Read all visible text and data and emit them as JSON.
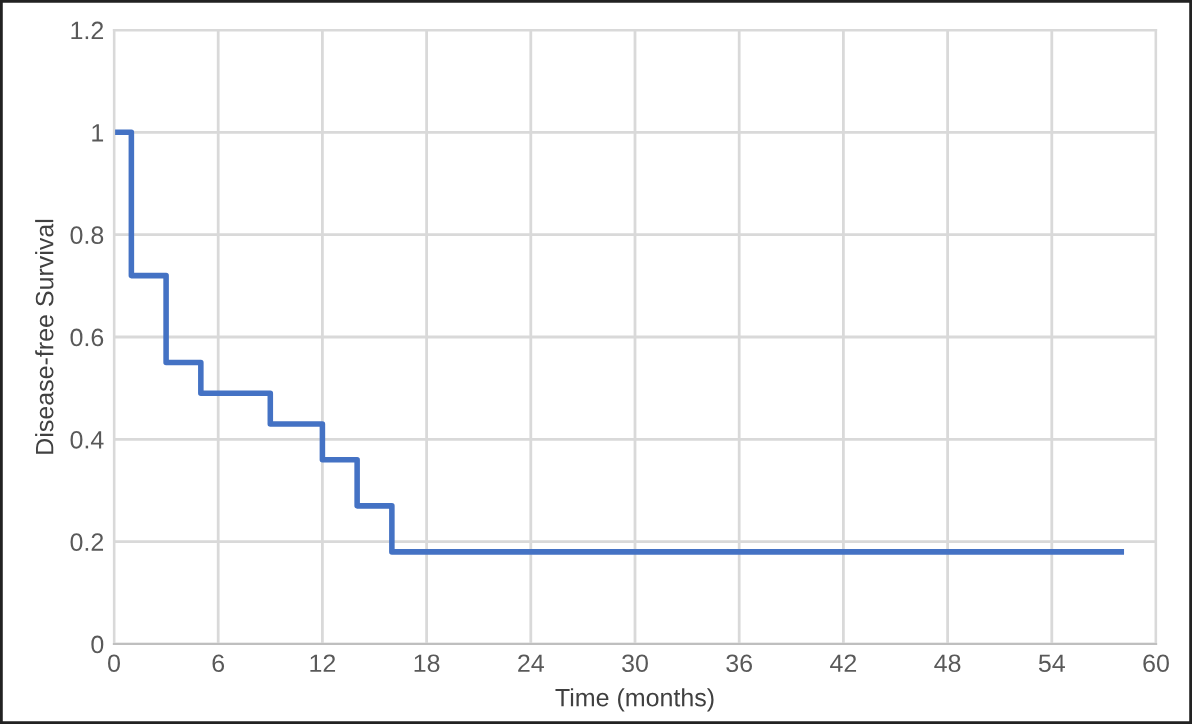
{
  "chart_data": {
    "type": "step",
    "xlabel": "Time (months)",
    "ylabel": "Disease-free Survival",
    "x": [
      0,
      1,
      3,
      5,
      9,
      12,
      14,
      16,
      58
    ],
    "series": [
      {
        "color": "#4472c4",
        "values": [
          1,
          0.72,
          0.55,
          0.49,
          0.43,
          0.36,
          0.27,
          0.18,
          0.18
        ]
      }
    ],
    "xlim": [
      0,
      60
    ],
    "xticks": [
      0,
      6,
      12,
      18,
      24,
      30,
      36,
      42,
      48,
      54,
      60
    ],
    "ylim": [
      0,
      1.2
    ],
    "yticks": [
      0,
      {
        "value": 0.2,
        "label": "0.2"
      },
      {
        "value": 0.4,
        "label": "0.4"
      },
      {
        "value": 0.6,
        "label": "0.6"
      },
      {
        "value": 0.8,
        "label": "0.8"
      },
      1,
      {
        "value": 1.2,
        "label": "1.2"
      }
    ],
    "grid": true,
    "line_style": "solid"
  }
}
